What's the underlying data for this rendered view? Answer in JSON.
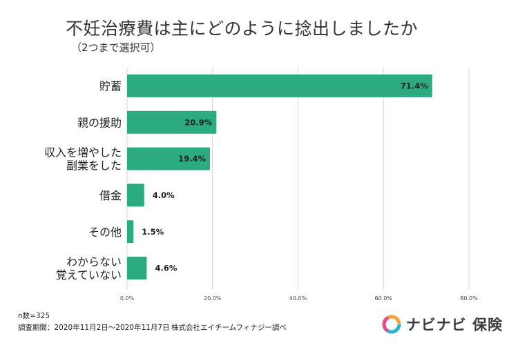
{
  "title": "不妊治療費は主にどのように捻出しましたか",
  "subtitle": "（2つまで選択可）",
  "chart_data": {
    "type": "bar",
    "orientation": "horizontal",
    "categories": [
      [
        "貯蓄"
      ],
      [
        "親の援助"
      ],
      [
        "収入を増やした",
        "副業をした"
      ],
      [
        "借金"
      ],
      [
        "その他"
      ],
      [
        "わからない",
        "覚えていない"
      ]
    ],
    "values": [
      71.4,
      20.9,
      19.4,
      4.0,
      1.5,
      4.6
    ],
    "value_labels": [
      "71.4%",
      "20.9%",
      "19.4%",
      "4.0%",
      "1.5%",
      "4.6%"
    ],
    "xlim": [
      0,
      80
    ],
    "xticks": [
      0,
      20,
      40,
      60,
      80
    ],
    "xtick_labels": [
      "0.0%",
      "20.0%",
      "40.0%",
      "60.0%",
      "80.0%"
    ],
    "grid": true,
    "bar_color": "#2bab7f",
    "grid_color": "#d6d6d6"
  },
  "footnotes": {
    "n": "n数=325",
    "period": "調査期間：2020年11月2日〜2020年11月7日",
    "company": "株式会社エイチームフィナジー調べ"
  },
  "brand": {
    "name": "ナビナビ 保険",
    "logo_icon": "navinavi-logo-icon",
    "colors": [
      "#f2a33a",
      "#e94b8a",
      "#2bb3c9"
    ]
  }
}
